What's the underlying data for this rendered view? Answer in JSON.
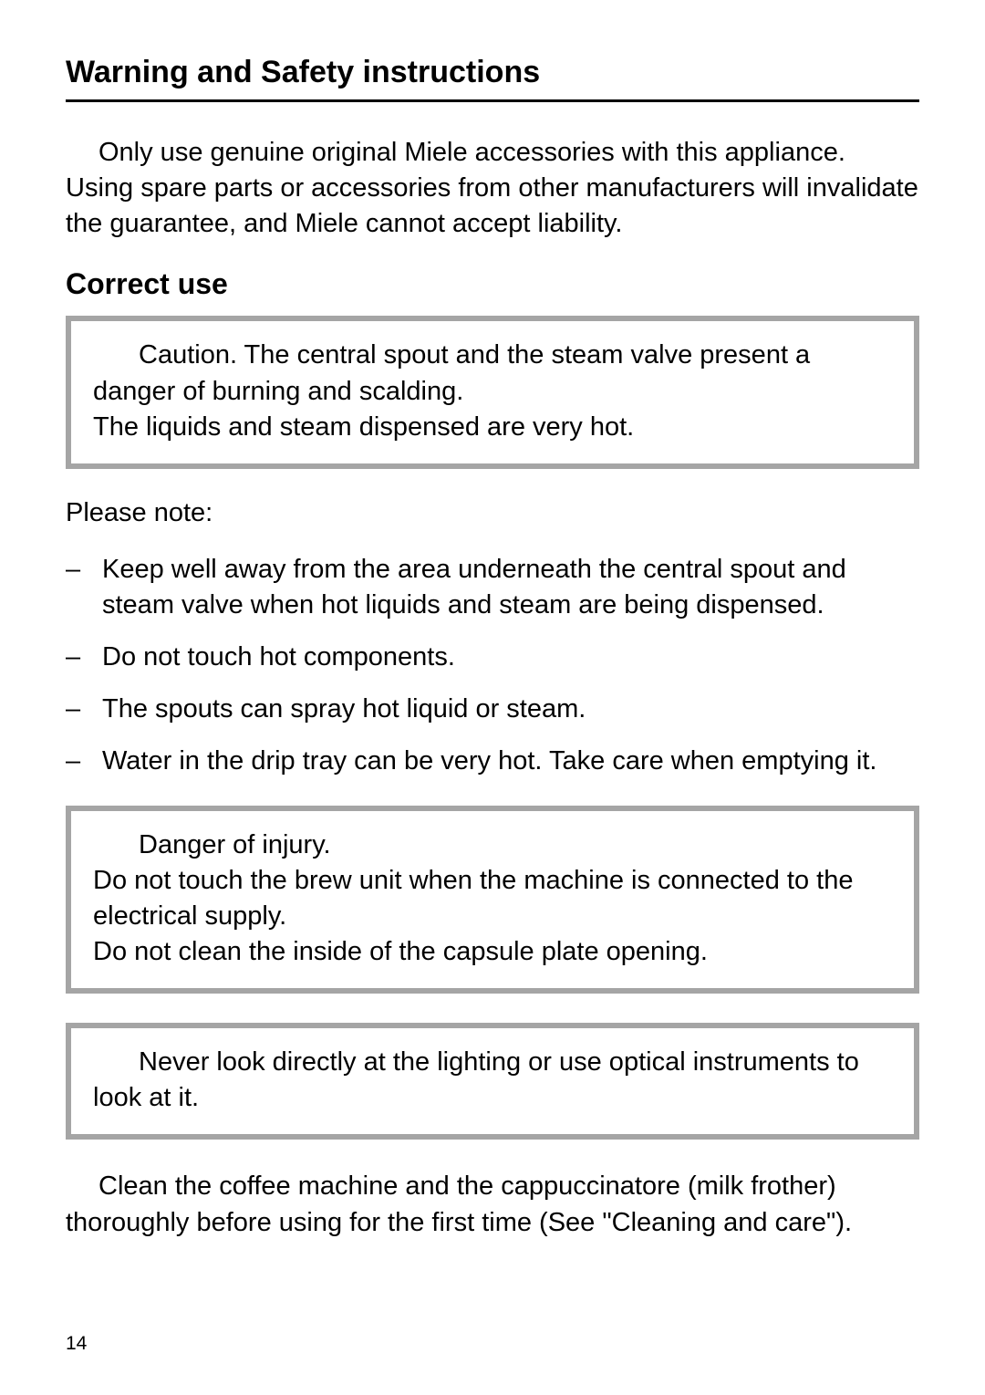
{
  "header": {
    "title": "Warning and Safety instructions"
  },
  "para1": "Only use genuine original Miele accessories with this appliance. Using spare parts or accessories from other manufacturers will invalidate the guarantee, and Miele cannot accept liability.",
  "sectionHeading1": "Correct use",
  "callout1": {
    "line1": "Caution. The central spout and the steam valve present a danger of burning and scalding.",
    "line2": "The liquids and steam dispensed are very hot."
  },
  "pleaseNote": "Please note:",
  "list1": [
    "Keep well away from the area underneath the central spout and steam valve when hot liquids and steam are being dispensed.",
    "Do not touch hot components.",
    "The spouts can spray hot liquid or steam.",
    "Water in the drip tray can be very hot. Take care when emptying it."
  ],
  "callout2": {
    "line1": "Danger of injury.",
    "line2": "Do not touch the brew unit when the machine is connected to the electrical supply.",
    "line3": "Do not clean the inside of the capsule plate opening."
  },
  "callout3": {
    "line1": "Never look directly at the lighting or use optical instruments to look at it."
  },
  "para2": "Clean the coffee machine and the cappuccinatore (milk frother) thoroughly before using for the first time (See \"Cleaning and care\").",
  "pageNumber": "14",
  "colors": {
    "border": "#a5a5a5",
    "text": "#000000",
    "background": "#ffffff"
  },
  "typography": {
    "body_fontsize": 29,
    "heading_fontsize": 34,
    "subheading_fontsize": 32,
    "pagenum_fontsize": 21
  }
}
